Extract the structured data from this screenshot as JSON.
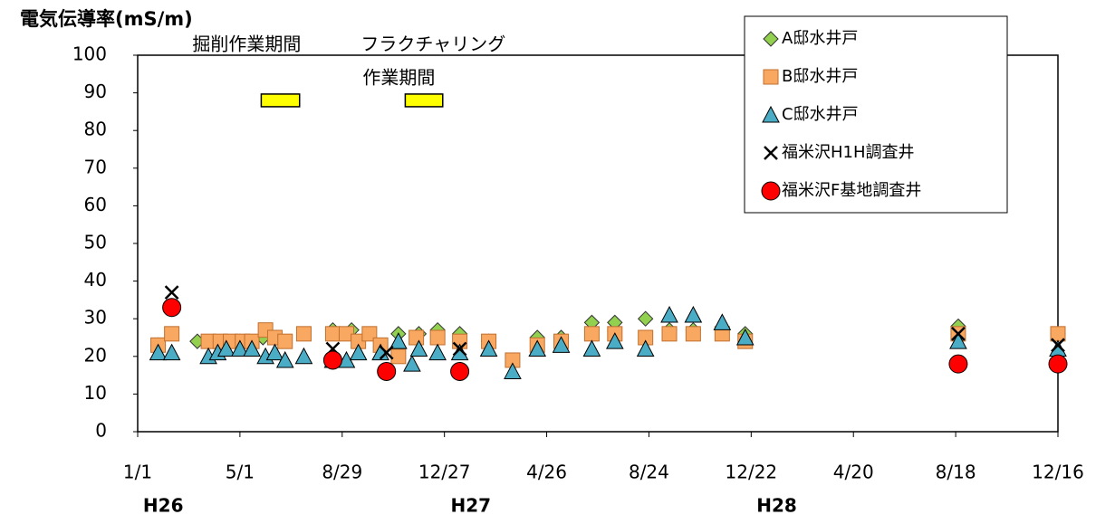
{
  "chart_data": {
    "type": "scatter",
    "title": "電気伝導率(mS/m)",
    "xlim": [
      0,
      1080
    ],
    "xticks": [
      {
        "value": 0,
        "label": "1/1"
      },
      {
        "value": 120,
        "label": "5/1"
      },
      {
        "value": 240,
        "label": "8/29"
      },
      {
        "value": 360,
        "label": "12/27"
      },
      {
        "value": 480,
        "label": "4/26"
      },
      {
        "value": 600,
        "label": "8/24"
      },
      {
        "value": 720,
        "label": "12/22"
      },
      {
        "value": 840,
        "label": "4/20"
      },
      {
        "value": 960,
        "label": "8/18"
      },
      {
        "value": 1080,
        "label": "12/16"
      }
    ],
    "ylim": [
      0,
      100
    ],
    "yticks": [
      0,
      10,
      20,
      30,
      40,
      50,
      60,
      70,
      80,
      90,
      100
    ],
    "grid": false,
    "legend": "upper right",
    "eras": [
      {
        "x": 30,
        "label": "H26"
      },
      {
        "x": 391,
        "label": "H27"
      },
      {
        "x": 750,
        "label": "H28"
      }
    ],
    "periods": [
      {
        "lines": [
          "掘削作業期間"
        ],
        "start": 145,
        "end": 190,
        "y": 88,
        "color": "#ffff00"
      },
      {
        "lines": [
          "フラクチャリング",
          "作業期間"
        ],
        "start": 314,
        "end": 358,
        "y": 88,
        "color": "#ffff00"
      }
    ],
    "series": [
      {
        "name": "A邸水井戸",
        "marker": "diamond",
        "color": "#92d050",
        "x": [
          24,
          70,
          120,
          147,
          163,
          229,
          251,
          306,
          330,
          352,
          378,
          412,
          469,
          497,
          533,
          560,
          596,
          624,
          652,
          686,
          713,
          963,
          1080
        ],
        "values": [
          23,
          24,
          24,
          25,
          25,
          27,
          27,
          26,
          26,
          27,
          26,
          24,
          25,
          25,
          29,
          29,
          30,
          27,
          27,
          27,
          26,
          28,
          26
        ]
      },
      {
        "name": "B邸水井戸",
        "marker": "square",
        "color": "#f8a860",
        "x": [
          24,
          40,
          83,
          97,
          109,
          123,
          134,
          150,
          161,
          173,
          195,
          229,
          245,
          259,
          272,
          285,
          306,
          327,
          352,
          378,
          412,
          440,
          469,
          497,
          533,
          560,
          596,
          624,
          652,
          686,
          713,
          963,
          1080
        ],
        "values": [
          23,
          26,
          24,
          24,
          24,
          24,
          24,
          27,
          25,
          24,
          26,
          26,
          26,
          24,
          26,
          23,
          20,
          25,
          25,
          24,
          24,
          19,
          23,
          24,
          26,
          26,
          25,
          26,
          26,
          26,
          24,
          26,
          26
        ]
      },
      {
        "name": "C邸水井戸",
        "marker": "triangle",
        "color": "#4bacc6",
        "x": [
          24,
          40,
          83,
          94,
          104,
          120,
          134,
          150,
          161,
          173,
          195,
          229,
          245,
          259,
          285,
          306,
          322,
          330,
          352,
          378,
          412,
          440,
          469,
          497,
          533,
          560,
          596,
          624,
          652,
          686,
          713,
          963,
          1080
        ],
        "values": [
          21,
          21,
          20,
          21,
          22,
          22,
          22,
          20,
          21,
          19,
          20,
          19,
          19,
          21,
          21,
          24,
          18,
          22,
          21,
          21,
          22,
          16,
          22,
          23,
          22,
          24,
          22,
          31,
          31,
          29,
          25,
          24,
          22
        ]
      },
      {
        "name": "福米沢H1H調査井",
        "marker": "x",
        "color": "#000000",
        "x": [
          40,
          229,
          292,
          378,
          963,
          1080
        ],
        "values": [
          37,
          22,
          21,
          22,
          26,
          23
        ]
      },
      {
        "name": "福米沢F基地調査井",
        "marker": "circle",
        "color": "#ff0000",
        "x": [
          40,
          229,
          292,
          378,
          963,
          1080
        ],
        "values": [
          33,
          19,
          16,
          16,
          18,
          18
        ]
      }
    ]
  }
}
